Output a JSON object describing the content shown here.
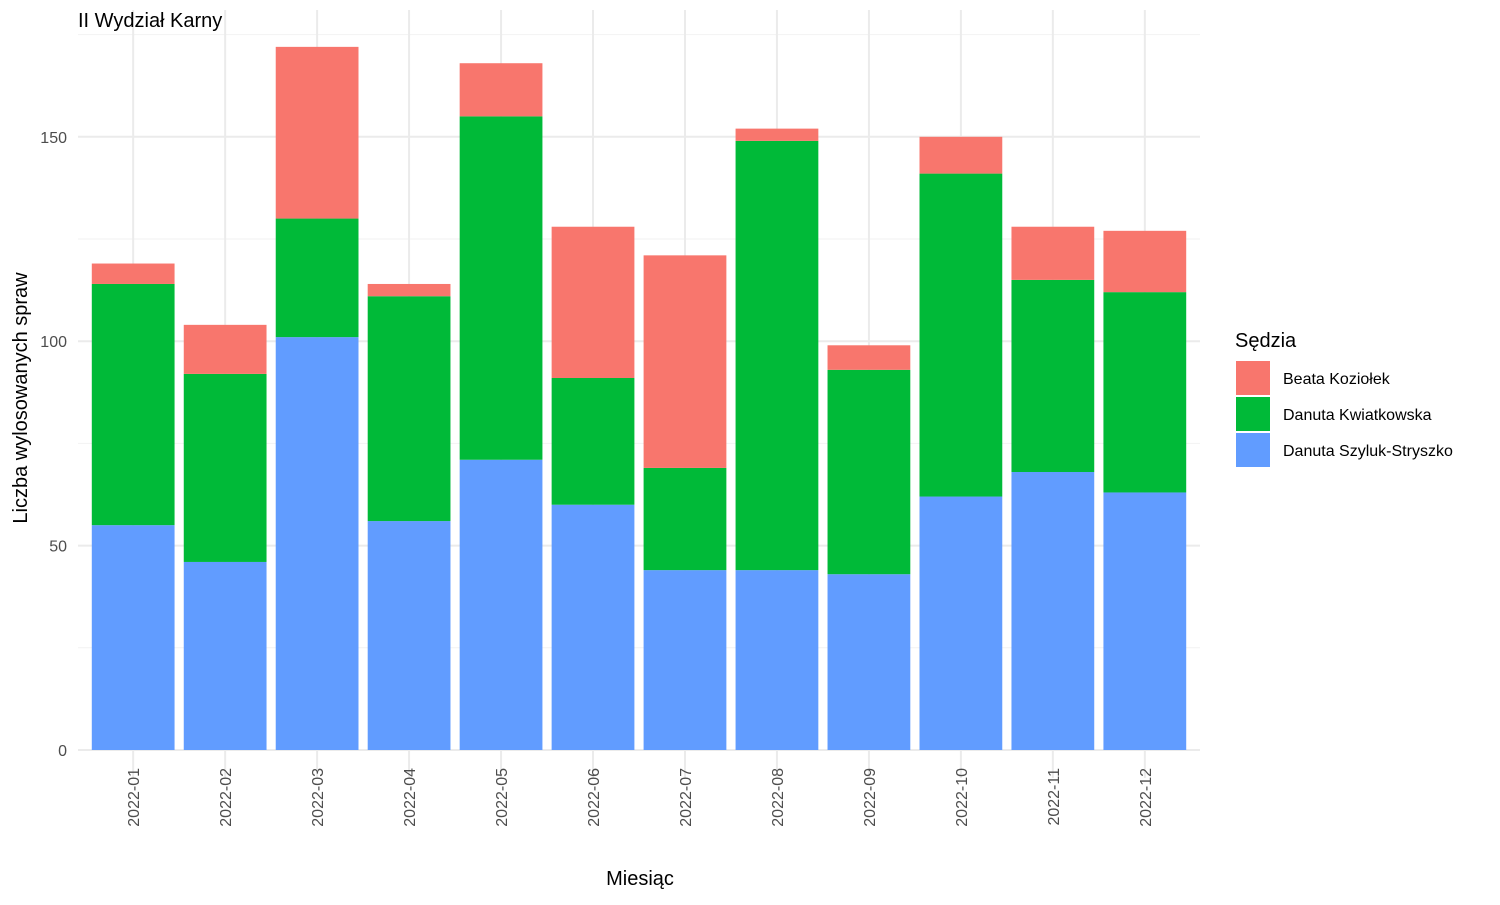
{
  "chart_data": {
    "type": "bar",
    "stacked": true,
    "title": "II Wydział Karny",
    "xlabel": "Miesiąc",
    "ylabel": "Liczba wylosowanych spraw",
    "ylim": [
      0,
      175
    ],
    "yticks": [
      0,
      50,
      100,
      150
    ],
    "grid": true,
    "legend_title": "Sędzia",
    "legend_position": "right",
    "categories": [
      "2022-01",
      "2022-02",
      "2022-03",
      "2022-04",
      "2022-05",
      "2022-06",
      "2022-07",
      "2022-08",
      "2022-09",
      "2022-10",
      "2022-11",
      "2022-12"
    ],
    "series": [
      {
        "name": "Danuta Szyluk-Stryszko",
        "color": "#619CFF",
        "values": [
          55,
          46,
          101,
          56,
          71,
          60,
          44,
          44,
          43,
          62,
          68,
          63
        ]
      },
      {
        "name": "Danuta Kwiatkowska",
        "color": "#00BA38",
        "values": [
          59,
          46,
          29,
          55,
          84,
          31,
          25,
          105,
          50,
          79,
          47,
          49
        ]
      },
      {
        "name": "Beata Koziołek",
        "color": "#F8766D",
        "values": [
          5,
          12,
          42,
          3,
          13,
          37,
          52,
          3,
          6,
          9,
          13,
          15
        ]
      }
    ],
    "legend_order": [
      "Beata Koziołek",
      "Danuta Kwiatkowska",
      "Danuta Szyluk-Stryszko"
    ]
  }
}
